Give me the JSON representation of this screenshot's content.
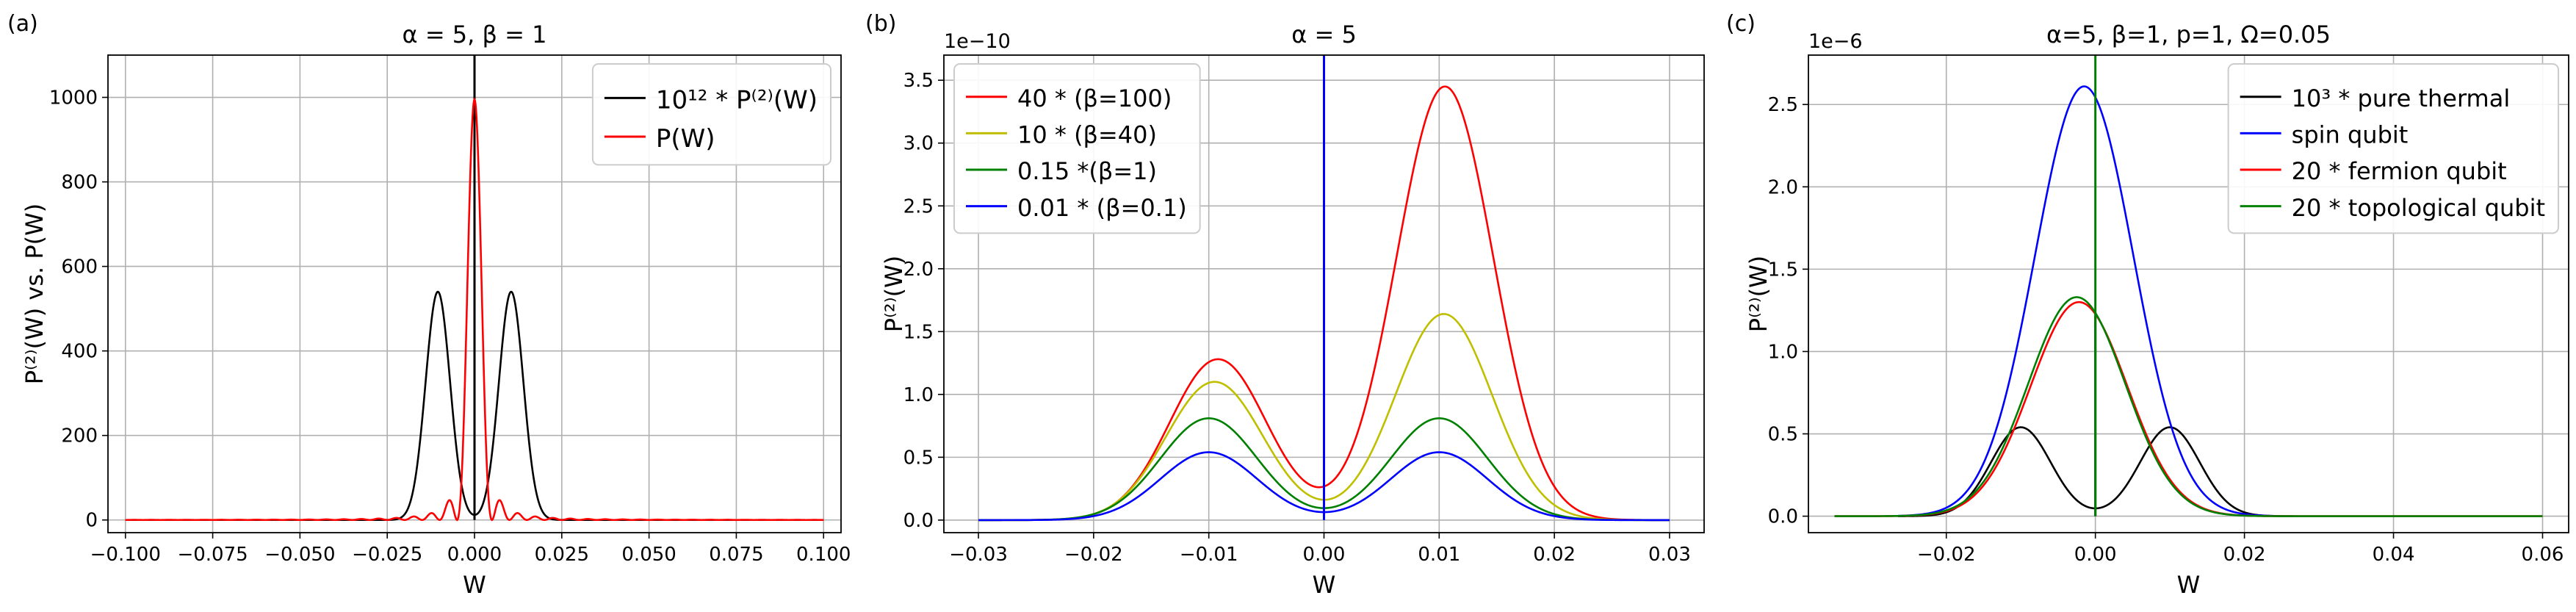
{
  "chart_data": [
    {
      "panel_label": "(a)",
      "type": "line",
      "title": "α = 5, β = 1",
      "xlabel": "W",
      "ylabel": "P⁽²⁾(W) vs. P(W)",
      "xlim": [
        -0.105,
        0.105
      ],
      "ylim": [
        -30,
        1100
      ],
      "xticks": [
        -0.1,
        -0.075,
        -0.05,
        -0.025,
        0.0,
        0.025,
        0.05,
        0.075,
        0.1
      ],
      "xtick_labels": [
        "−0.100",
        "−0.075",
        "−0.050",
        "−0.025",
        "0.000",
        "0.025",
        "0.050",
        "0.075",
        "0.100"
      ],
      "yticks": [
        0,
        200,
        400,
        600,
        800,
        1000
      ],
      "ytick_labels": [
        "0",
        "200",
        "400",
        "600",
        "800",
        "1000"
      ],
      "offset_text": "",
      "grid": true,
      "legend_position": "upper-right",
      "legend_font": 34,
      "series": [
        {
          "name": "10¹² * P⁽²⁾(W)",
          "color": "#000000",
          "kind": "two_peak",
          "amp": 540,
          "center": 0.0105,
          "sigma": 0.0035,
          "xmin": -0.1,
          "xmax": 0.1,
          "spike": {
            "x": 0.0,
            "top": 1100
          }
        },
        {
          "name": "P(W)",
          "color": "#ff0000",
          "kind": "sinc2",
          "amp": 995,
          "k": 0.005,
          "floor": 1.5,
          "xmin": -0.1,
          "xmax": 0.1
        }
      ]
    },
    {
      "panel_label": "(b)",
      "type": "line",
      "title": "α = 5",
      "xlabel": "W",
      "ylabel": "P⁽²⁾(W)",
      "xlim": [
        -0.033,
        0.033
      ],
      "ylim": [
        -0.1,
        3.7
      ],
      "xticks": [
        -0.03,
        -0.02,
        -0.01,
        0.0,
        0.01,
        0.02,
        0.03
      ],
      "xtick_labels": [
        "−0.03",
        "−0.02",
        "−0.01",
        "0.00",
        "0.01",
        "0.02",
        "0.03"
      ],
      "yticks": [
        0,
        0.5,
        1.0,
        1.5,
        2.0,
        2.5,
        3.0,
        3.5
      ],
      "ytick_labels": [
        "0.0",
        "0.5",
        "1.0",
        "1.5",
        "2.0",
        "2.5",
        "3.0",
        "3.5"
      ],
      "offset_text": "1e−10",
      "grid": true,
      "legend_position": "upper-left",
      "legend_font": 32,
      "series": [
        {
          "name": "40 * (β=100)",
          "color": "#ff0000",
          "kind": "asym_peak",
          "left": 1.28,
          "right": 3.45,
          "cl": -0.0092,
          "cr": 0.0105,
          "sigma": 0.0042,
          "xmin": -0.03,
          "xmax": 0.03
        },
        {
          "name": "10 * (β=40)",
          "color": "#bfbf00",
          "kind": "asym_peak",
          "left": 1.1,
          "right": 1.64,
          "cl": -0.0095,
          "cr": 0.0104,
          "sigma": 0.0042,
          "xmin": -0.03,
          "xmax": 0.03
        },
        {
          "name": "0.15 *(β=1)",
          "color": "#008000",
          "kind": "asym_peak",
          "left": 0.81,
          "right": 0.81,
          "cl": -0.01,
          "cr": 0.01,
          "sigma": 0.0042,
          "xmin": -0.03,
          "xmax": 0.03
        },
        {
          "name": "0.01 * (β=0.1)",
          "color": "#0000ff",
          "kind": "asym_peak",
          "left": 0.54,
          "right": 0.54,
          "cl": -0.01,
          "cr": 0.01,
          "sigma": 0.0042,
          "xmin": -0.03,
          "xmax": 0.03,
          "spike": {
            "x": 0.0,
            "top": 3.7
          }
        }
      ]
    },
    {
      "panel_label": "(c)",
      "type": "line",
      "title": "α=5, β=1, p=1, Ω=0.05",
      "xlabel": "W",
      "ylabel": "P⁽²⁾(W)",
      "xlim": [
        -0.0385,
        0.0635
      ],
      "ylim": [
        -0.1,
        2.8
      ],
      "xticks": [
        -0.02,
        0.0,
        0.02,
        0.04,
        0.06
      ],
      "xtick_labels": [
        "−0.02",
        "0.00",
        "0.02",
        "0.04",
        "0.06"
      ],
      "yticks": [
        0,
        0.5,
        1.0,
        1.5,
        2.0,
        2.5
      ],
      "ytick_labels": [
        "0.0",
        "0.5",
        "1.0",
        "1.5",
        "2.0",
        "2.5"
      ],
      "offset_text": "1e−6",
      "grid": true,
      "legend_position": "upper-right",
      "legend_font": 32,
      "series": [
        {
          "name": "10³ * pure thermal",
          "color": "#000000",
          "kind": "two_peak",
          "amp": 0.54,
          "center": 0.01,
          "sigma": 0.004,
          "xmin": -0.0265,
          "xmax": 0.0265,
          "spike": {
            "x": 0.0,
            "top": 1.22
          }
        },
        {
          "name": "spin qubit",
          "color": "#0000ff",
          "kind": "gauss",
          "amp": 2.61,
          "center": -0.0015,
          "sigma": 0.0066,
          "xmin": -0.0265,
          "xmax": 0.024
        },
        {
          "name": "20 * fermion qubit",
          "color": "#ff0000",
          "kind": "gauss",
          "amp": 1.3,
          "center": -0.0022,
          "sigma": 0.0065,
          "xmin": -0.035,
          "xmax": 0.06
        },
        {
          "name": "20 * topological qubit",
          "color": "#008000",
          "kind": "gauss",
          "amp": 1.33,
          "center": -0.0025,
          "sigma": 0.0065,
          "xmin": -0.035,
          "xmax": 0.06,
          "spike": {
            "x": 0.0,
            "top": 2.8
          }
        }
      ]
    }
  ]
}
